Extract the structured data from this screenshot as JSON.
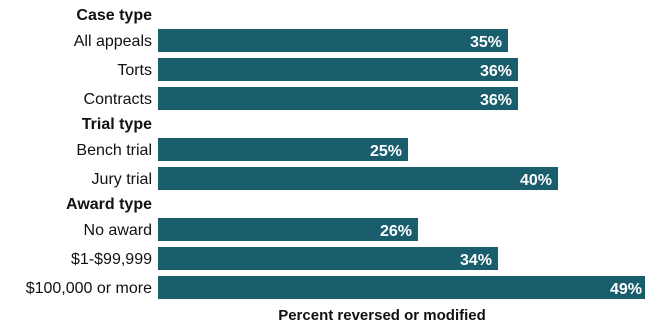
{
  "chart_data": {
    "type": "bar",
    "orientation": "horizontal",
    "xlabel": "Percent reversed or modified",
    "xlim": [
      0,
      100
    ],
    "value_format": "percent",
    "bar_color": "#1a5e6e",
    "groups": [
      {
        "label": "Case type",
        "categories": [
          "All appeals",
          "Torts",
          "Contracts"
        ],
        "values": [
          35,
          36,
          36
        ]
      },
      {
        "label": "Trial type",
        "categories": [
          "Bench trial",
          "Jury trial"
        ],
        "values": [
          25,
          40
        ]
      },
      {
        "label": "Award type",
        "categories": [
          "No award",
          "$1-$99,999",
          "$100,000 or more"
        ],
        "values": [
          26,
          34,
          49
        ]
      }
    ]
  }
}
